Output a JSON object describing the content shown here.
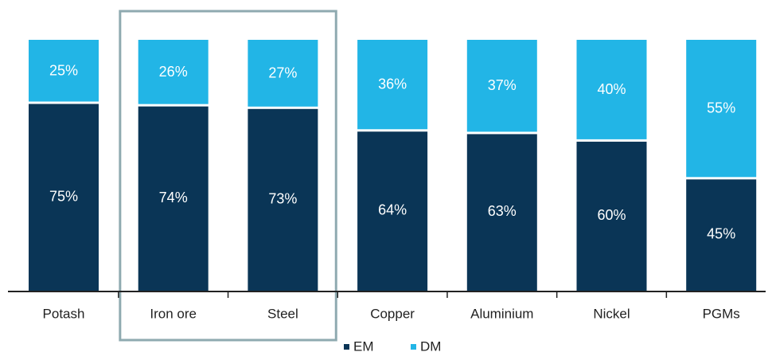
{
  "chart_data": {
    "type": "bar",
    "stacked": true,
    "percent": true,
    "categories": [
      "Potash",
      "Iron ore",
      "Steel",
      "Copper",
      "Aluminium",
      "Nickel",
      "PGMs"
    ],
    "series": [
      {
        "name": "EM",
        "values": [
          75,
          74,
          73,
          64,
          63,
          60,
          45
        ],
        "labels": [
          "75%",
          "74%",
          "73%",
          "64%",
          "63%",
          "60%",
          "45%"
        ]
      },
      {
        "name": "DM",
        "values": [
          25,
          26,
          27,
          36,
          37,
          40,
          55
        ],
        "labels": [
          "25%",
          "26%",
          "27%",
          "36%",
          "37%",
          "40%",
          "55%"
        ]
      }
    ],
    "ylim": [
      0,
      100
    ],
    "grid": false,
    "legend_position": "bottom-center",
    "highlight": [
      "Iron ore",
      "Steel"
    ]
  },
  "colors": {
    "EM": "#0a3556",
    "DM": "#22b5e6",
    "highlight_box": "#8faab0",
    "axis": "#222222"
  }
}
